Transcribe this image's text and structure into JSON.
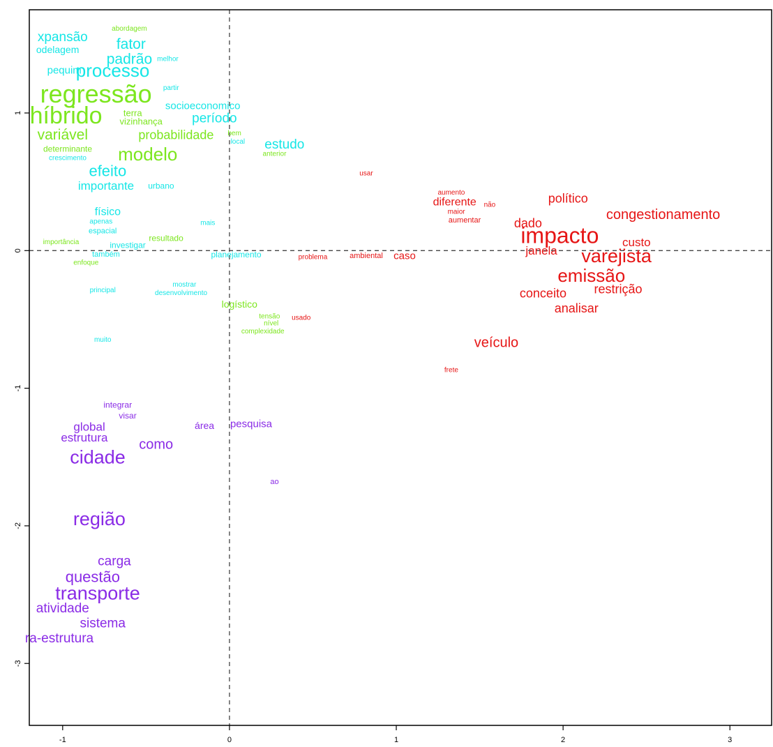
{
  "chart_data": {
    "type": "scatter",
    "title": "",
    "xlabel": "",
    "ylabel": "",
    "xlim": [
      -1.2,
      3.25
    ],
    "ylim": [
      -3.45,
      1.75
    ],
    "x_ticks": [
      -1,
      0,
      1,
      2,
      3
    ],
    "x_tick_labels": [
      "-1",
      "0",
      "1",
      "2",
      "3"
    ],
    "y_ticks": [
      1,
      0,
      -1,
      -2,
      -3
    ],
    "y_tick_labels": [
      "1",
      "0",
      "-1",
      "-2",
      "-3"
    ],
    "reference_lines": {
      "x": 0,
      "y": 0,
      "style": "dashed"
    },
    "grid": false,
    "legend": "none",
    "groups": [
      {
        "color": "#15e6e6"
      },
      {
        "color": "#7ce61e"
      },
      {
        "color": "#e61515"
      },
      {
        "color": "#8a2be6"
      }
    ],
    "words": [
      {
        "text": "xpansão",
        "x": -1.0,
        "y": 1.55,
        "size": 19,
        "group": 0
      },
      {
        "text": "abordagem",
        "x": -0.6,
        "y": 1.61,
        "size": 10,
        "group": 1
      },
      {
        "text": "odelagem",
        "x": -1.03,
        "y": 1.46,
        "size": 14,
        "group": 0
      },
      {
        "text": "fator",
        "x": -0.59,
        "y": 1.5,
        "size": 21,
        "group": 0
      },
      {
        "text": "padrão",
        "x": -0.6,
        "y": 1.39,
        "size": 21,
        "group": 0
      },
      {
        "text": "melhor",
        "x": -0.37,
        "y": 1.39,
        "size": 10,
        "group": 0
      },
      {
        "text": "pequim",
        "x": -0.99,
        "y": 1.31,
        "size": 15,
        "group": 0
      },
      {
        "text": "processo",
        "x": -0.7,
        "y": 1.31,
        "size": 26,
        "group": 0
      },
      {
        "text": "regressão",
        "x": -0.8,
        "y": 1.14,
        "size": 36,
        "group": 1
      },
      {
        "text": "partir",
        "x": -0.35,
        "y": 1.18,
        "size": 10,
        "group": 0
      },
      {
        "text": "socioeconomico",
        "x": -0.16,
        "y": 1.05,
        "size": 15,
        "group": 0
      },
      {
        "text": "híbrido",
        "x": -0.98,
        "y": 0.98,
        "size": 34,
        "group": 1
      },
      {
        "text": "terra",
        "x": -0.58,
        "y": 1.0,
        "size": 13,
        "group": 1
      },
      {
        "text": "vizinhança",
        "x": -0.53,
        "y": 0.94,
        "size": 13,
        "group": 1
      },
      {
        "text": "período",
        "x": -0.09,
        "y": 0.96,
        "size": 19,
        "group": 0
      },
      {
        "text": "variável",
        "x": -1.0,
        "y": 0.84,
        "size": 21,
        "group": 1
      },
      {
        "text": "probabilidade",
        "x": -0.32,
        "y": 0.84,
        "size": 18,
        "group": 1
      },
      {
        "text": "bem",
        "x": 0.03,
        "y": 0.85,
        "size": 10,
        "group": 1
      },
      {
        "text": "local",
        "x": 0.05,
        "y": 0.79,
        "size": 10,
        "group": 0
      },
      {
        "text": "estudo",
        "x": 0.33,
        "y": 0.77,
        "size": 19,
        "group": 0
      },
      {
        "text": "determinante",
        "x": -0.97,
        "y": 0.74,
        "size": 12,
        "group": 1
      },
      {
        "text": "modelo",
        "x": -0.49,
        "y": 0.7,
        "size": 26,
        "group": 1
      },
      {
        "text": "anterior",
        "x": 0.27,
        "y": 0.7,
        "size": 10,
        "group": 1
      },
      {
        "text": "crescimento",
        "x": -0.97,
        "y": 0.67,
        "size": 10,
        "group": 0
      },
      {
        "text": "efeito",
        "x": -0.73,
        "y": 0.58,
        "size": 22,
        "group": 0
      },
      {
        "text": "usar",
        "x": 0.82,
        "y": 0.56,
        "size": 10,
        "group": 2
      },
      {
        "text": "importante",
        "x": -0.74,
        "y": 0.47,
        "size": 17,
        "group": 0
      },
      {
        "text": "urbano",
        "x": -0.41,
        "y": 0.47,
        "size": 12,
        "group": 0
      },
      {
        "text": "aumento",
        "x": 1.33,
        "y": 0.42,
        "size": 10,
        "group": 2
      },
      {
        "text": "político",
        "x": 2.03,
        "y": 0.38,
        "size": 18,
        "group": 2
      },
      {
        "text": "diferente",
        "x": 1.35,
        "y": 0.35,
        "size": 16,
        "group": 2
      },
      {
        "text": "não",
        "x": 1.56,
        "y": 0.33,
        "size": 10,
        "group": 2
      },
      {
        "text": "maior",
        "x": 1.36,
        "y": 0.28,
        "size": 10,
        "group": 2
      },
      {
        "text": "físico",
        "x": -0.73,
        "y": 0.28,
        "size": 16,
        "group": 0
      },
      {
        "text": "congestionamento",
        "x": 2.6,
        "y": 0.26,
        "size": 20,
        "group": 2
      },
      {
        "text": "aumentar",
        "x": 1.41,
        "y": 0.22,
        "size": 11,
        "group": 2
      },
      {
        "text": "apenas",
        "x": -0.77,
        "y": 0.21,
        "size": 10,
        "group": 0
      },
      {
        "text": "dado",
        "x": 1.79,
        "y": 0.2,
        "size": 18,
        "group": 2
      },
      {
        "text": "mais",
        "x": -0.13,
        "y": 0.2,
        "size": 10,
        "group": 0
      },
      {
        "text": "espacial",
        "x": -0.76,
        "y": 0.14,
        "size": 11,
        "group": 0
      },
      {
        "text": "impacto",
        "x": 1.98,
        "y": 0.11,
        "size": 32,
        "group": 2
      },
      {
        "text": "resultado",
        "x": -0.38,
        "y": 0.09,
        "size": 12,
        "group": 1
      },
      {
        "text": "custo",
        "x": 2.44,
        "y": 0.06,
        "size": 17,
        "group": 2
      },
      {
        "text": "importância",
        "x": -1.01,
        "y": 0.06,
        "size": 10,
        "group": 1
      },
      {
        "text": "investigar",
        "x": -0.61,
        "y": 0.04,
        "size": 12,
        "group": 0
      },
      {
        "text": "janela",
        "x": 1.87,
        "y": 0.0,
        "size": 17,
        "group": 2
      },
      {
        "text": "varejista",
        "x": 2.32,
        "y": -0.04,
        "size": 27,
        "group": 2
      },
      {
        "text": "também",
        "x": -0.74,
        "y": -0.03,
        "size": 11,
        "group": 0
      },
      {
        "text": "planejamento",
        "x": 0.04,
        "y": -0.03,
        "size": 12,
        "group": 0
      },
      {
        "text": "problema",
        "x": 0.5,
        "y": -0.05,
        "size": 10,
        "group": 2
      },
      {
        "text": "ambiental",
        "x": 0.82,
        "y": -0.04,
        "size": 11,
        "group": 2
      },
      {
        "text": "caso",
        "x": 1.05,
        "y": -0.04,
        "size": 15,
        "group": 2
      },
      {
        "text": "enfoque",
        "x": -0.86,
        "y": -0.09,
        "size": 10,
        "group": 1
      },
      {
        "text": "emissão",
        "x": 2.17,
        "y": -0.18,
        "size": 26,
        "group": 2
      },
      {
        "text": "mostrar",
        "x": -0.27,
        "y": -0.25,
        "size": 10,
        "group": 0
      },
      {
        "text": "principal",
        "x": -0.76,
        "y": -0.29,
        "size": 10,
        "group": 0
      },
      {
        "text": "desenvolvimento",
        "x": -0.29,
        "y": -0.31,
        "size": 10,
        "group": 0
      },
      {
        "text": "restrição",
        "x": 2.33,
        "y": -0.28,
        "size": 18,
        "group": 2
      },
      {
        "text": "conceito",
        "x": 1.88,
        "y": -0.31,
        "size": 18,
        "group": 2
      },
      {
        "text": "logístico",
        "x": 0.06,
        "y": -0.39,
        "size": 14,
        "group": 1
      },
      {
        "text": "analisar",
        "x": 2.08,
        "y": -0.42,
        "size": 18,
        "group": 2
      },
      {
        "text": "tensão",
        "x": 0.24,
        "y": -0.48,
        "size": 10,
        "group": 1
      },
      {
        "text": "usado",
        "x": 0.43,
        "y": -0.49,
        "size": 10,
        "group": 2
      },
      {
        "text": "nível",
        "x": 0.25,
        "y": -0.53,
        "size": 10,
        "group": 1
      },
      {
        "text": "complexidade",
        "x": 0.2,
        "y": -0.59,
        "size": 10,
        "group": 1
      },
      {
        "text": "muito",
        "x": -0.76,
        "y": -0.65,
        "size": 10,
        "group": 0
      },
      {
        "text": "veículo",
        "x": 1.6,
        "y": -0.67,
        "size": 20,
        "group": 2
      },
      {
        "text": "frete",
        "x": 1.33,
        "y": -0.87,
        "size": 10,
        "group": 2
      },
      {
        "text": "integrar",
        "x": -0.67,
        "y": -1.12,
        "size": 12,
        "group": 3
      },
      {
        "text": "visar",
        "x": -0.61,
        "y": -1.2,
        "size": 12,
        "group": 3
      },
      {
        "text": "global",
        "x": -0.84,
        "y": -1.28,
        "size": 17,
        "group": 3
      },
      {
        "text": "área",
        "x": -0.15,
        "y": -1.27,
        "size": 14,
        "group": 3
      },
      {
        "text": "pesquisa",
        "x": 0.13,
        "y": -1.26,
        "size": 15,
        "group": 3
      },
      {
        "text": "estrutura",
        "x": -0.87,
        "y": -1.36,
        "size": 17,
        "group": 3
      },
      {
        "text": "como",
        "x": -0.44,
        "y": -1.41,
        "size": 20,
        "group": 3
      },
      {
        "text": "cidade",
        "x": -0.79,
        "y": -1.5,
        "size": 27,
        "group": 3
      },
      {
        "text": "ao",
        "x": 0.27,
        "y": -1.68,
        "size": 11,
        "group": 3
      },
      {
        "text": "região",
        "x": -0.78,
        "y": -1.95,
        "size": 27,
        "group": 3
      },
      {
        "text": "carga",
        "x": -0.69,
        "y": -2.26,
        "size": 19,
        "group": 3
      },
      {
        "text": "questão",
        "x": -0.82,
        "y": -2.37,
        "size": 22,
        "group": 3
      },
      {
        "text": "transporte",
        "x": -0.79,
        "y": -2.49,
        "size": 27,
        "group": 3
      },
      {
        "text": "atividade",
        "x": -1.0,
        "y": -2.6,
        "size": 19,
        "group": 3
      },
      {
        "text": "sistema",
        "x": -0.76,
        "y": -2.71,
        "size": 19,
        "group": 3
      },
      {
        "text": "ra-estrutura",
        "x": -1.02,
        "y": -2.82,
        "size": 19,
        "group": 3
      }
    ]
  }
}
